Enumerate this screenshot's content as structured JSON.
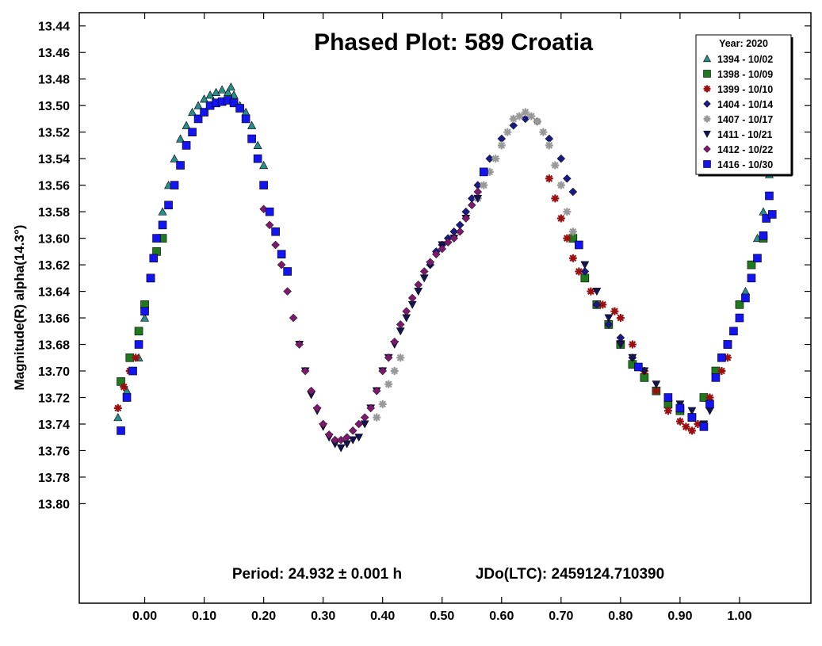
{
  "chart_data": {
    "type": "scatter",
    "title": "Phased Plot: 589 Croatia",
    "ylabel": "Magnitude(R) alpha(14.3°)",
    "xlabel": "",
    "xlim": [
      -0.11,
      1.12
    ],
    "ylim": [
      13.43,
      13.875
    ],
    "y_inverted": true,
    "x_ticks": [
      "0.00",
      "0.10",
      "0.20",
      "0.30",
      "0.40",
      "0.50",
      "0.60",
      "0.70",
      "0.80",
      "0.90",
      "1.00"
    ],
    "x_tick_values": [
      0,
      0.1,
      0.2,
      0.3,
      0.4,
      0.5,
      0.6,
      0.7,
      0.8,
      0.9,
      1.0
    ],
    "y_ticks": [
      "13.44",
      "13.46",
      "13.48",
      "13.50",
      "13.52",
      "13.54",
      "13.56",
      "13.58",
      "13.60",
      "13.62",
      "13.64",
      "13.66",
      "13.68",
      "13.70",
      "13.72",
      "13.74",
      "13.76",
      "13.78",
      "13.80"
    ],
    "y_tick_values": [
      13.44,
      13.46,
      13.48,
      13.5,
      13.52,
      13.54,
      13.56,
      13.58,
      13.6,
      13.62,
      13.64,
      13.66,
      13.68,
      13.7,
      13.72,
      13.74,
      13.76,
      13.78,
      13.8
    ],
    "period_text": "Period: 24.932 ± 0.001 h",
    "epoch_text": "JDo(LTC): 2459124.710390",
    "legend_title": "Year: 2020",
    "legend_position": "top-right",
    "grid": false,
    "series": [
      {
        "name": "1394 - 10/02",
        "marker": "triangle",
        "color": "#2a8c8c",
        "points": [
          [
            -0.045,
            13.735
          ],
          [
            -0.03,
            13.715
          ],
          [
            -0.01,
            13.69
          ],
          [
            0.0,
            13.66
          ],
          [
            0.01,
            13.63
          ],
          [
            0.02,
            13.6
          ],
          [
            0.03,
            13.58
          ],
          [
            0.04,
            13.56
          ],
          [
            0.05,
            13.54
          ],
          [
            0.06,
            13.525
          ],
          [
            0.07,
            13.515
          ],
          [
            0.08,
            13.505
          ],
          [
            0.09,
            13.5
          ],
          [
            0.1,
            13.495
          ],
          [
            0.11,
            13.492
          ],
          [
            0.12,
            13.49
          ],
          [
            0.13,
            13.488
          ],
          [
            0.14,
            13.49
          ],
          [
            0.145,
            13.486
          ],
          [
            0.15,
            13.492
          ],
          [
            0.16,
            13.5
          ],
          [
            0.17,
            13.505
          ],
          [
            0.18,
            13.515
          ],
          [
            0.19,
            13.53
          ],
          [
            0.2,
            13.545
          ],
          [
            1.0,
            13.66
          ],
          [
            1.01,
            13.64
          ],
          [
            1.02,
            13.62
          ],
          [
            1.03,
            13.6
          ],
          [
            1.04,
            13.58
          ],
          [
            1.05,
            13.552
          ]
        ]
      },
      {
        "name": "1398 - 10/09",
        "marker": "square",
        "color": "#1f7a1f",
        "points": [
          [
            -0.04,
            13.708
          ],
          [
            -0.025,
            13.69
          ],
          [
            -0.01,
            13.67
          ],
          [
            0.0,
            13.65
          ],
          [
            0.01,
            13.63
          ],
          [
            0.02,
            13.61
          ],
          [
            0.03,
            13.6
          ],
          [
            0.72,
            13.6
          ],
          [
            0.74,
            13.63
          ],
          [
            0.76,
            13.65
          ],
          [
            0.78,
            13.665
          ],
          [
            0.8,
            13.68
          ],
          [
            0.82,
            13.695
          ],
          [
            0.84,
            13.705
          ],
          [
            0.86,
            13.715
          ],
          [
            0.88,
            13.725
          ],
          [
            0.9,
            13.73
          ],
          [
            0.92,
            13.735
          ],
          [
            0.94,
            13.72
          ],
          [
            0.96,
            13.7
          ],
          [
            0.98,
            13.68
          ],
          [
            1.0,
            13.65
          ],
          [
            1.02,
            13.62
          ],
          [
            1.04,
            13.6
          ]
        ]
      },
      {
        "name": "1399 - 10/10",
        "marker": "asterisk",
        "color": "#9a1010",
        "points": [
          [
            -0.045,
            13.728
          ],
          [
            -0.035,
            13.712
          ],
          [
            -0.025,
            13.7
          ],
          [
            -0.015,
            13.69
          ],
          [
            0.68,
            13.555
          ],
          [
            0.69,
            13.57
          ],
          [
            0.7,
            13.585
          ],
          [
            0.71,
            13.6
          ],
          [
            0.72,
            13.615
          ],
          [
            0.73,
            13.625
          ],
          [
            0.75,
            13.64
          ],
          [
            0.77,
            13.65
          ],
          [
            0.79,
            13.655
          ],
          [
            0.8,
            13.66
          ],
          [
            0.82,
            13.68
          ],
          [
            0.84,
            13.7
          ],
          [
            0.86,
            13.715
          ],
          [
            0.88,
            13.73
          ],
          [
            0.9,
            13.738
          ],
          [
            0.91,
            13.742
          ],
          [
            0.92,
            13.745
          ],
          [
            0.93,
            13.74
          ],
          [
            0.95,
            13.72
          ],
          [
            0.96,
            13.705
          ],
          [
            0.97,
            13.7
          ],
          [
            0.98,
            13.69
          ]
        ]
      },
      {
        "name": "1404 - 10/14",
        "marker": "diamond",
        "color": "#1a1a80",
        "points": [
          [
            0.48,
            13.62
          ],
          [
            0.49,
            13.61
          ],
          [
            0.5,
            13.605
          ],
          [
            0.51,
            13.6
          ],
          [
            0.52,
            13.595
          ],
          [
            0.53,
            13.59
          ],
          [
            0.54,
            13.58
          ],
          [
            0.55,
            13.57
          ],
          [
            0.56,
            13.56
          ],
          [
            0.57,
            13.55
          ],
          [
            0.58,
            13.54
          ],
          [
            0.6,
            13.525
          ],
          [
            0.62,
            13.515
          ],
          [
            0.64,
            13.51
          ],
          [
            0.66,
            13.512
          ],
          [
            0.68,
            13.525
          ],
          [
            0.7,
            13.54
          ],
          [
            0.71,
            13.555
          ],
          [
            0.72,
            13.565
          ],
          [
            0.74,
            13.625
          ],
          [
            0.76,
            13.65
          ],
          [
            0.78,
            13.665
          ],
          [
            0.8,
            13.675
          ],
          [
            0.82,
            13.69
          ]
        ]
      },
      {
        "name": "1407 - 10/17",
        "marker": "asterisk",
        "color": "#999999",
        "points": [
          [
            0.39,
            13.735
          ],
          [
            0.4,
            13.725
          ],
          [
            0.41,
            13.71
          ],
          [
            0.42,
            13.7
          ],
          [
            0.43,
            13.69
          ],
          [
            0.56,
            13.57
          ],
          [
            0.57,
            13.56
          ],
          [
            0.58,
            13.55
          ],
          [
            0.59,
            13.54
          ],
          [
            0.6,
            13.53
          ],
          [
            0.61,
            13.52
          ],
          [
            0.62,
            13.51
          ],
          [
            0.63,
            13.508
          ],
          [
            0.64,
            13.505
          ],
          [
            0.65,
            13.508
          ],
          [
            0.66,
            13.512
          ],
          [
            0.67,
            13.52
          ],
          [
            0.68,
            13.53
          ],
          [
            0.69,
            13.545
          ],
          [
            0.7,
            13.56
          ],
          [
            0.71,
            13.58
          ],
          [
            0.72,
            13.595
          ]
        ]
      },
      {
        "name": "1411 - 10/21",
        "marker": "triangle-down",
        "color": "#141450",
        "points": [
          [
            0.26,
            13.68
          ],
          [
            0.27,
            13.7
          ],
          [
            0.28,
            13.718
          ],
          [
            0.29,
            13.73
          ],
          [
            0.3,
            13.742
          ],
          [
            0.31,
            13.75
          ],
          [
            0.32,
            13.755
          ],
          [
            0.33,
            13.758
          ],
          [
            0.34,
            13.755
          ],
          [
            0.35,
            13.752
          ],
          [
            0.36,
            13.75
          ],
          [
            0.37,
            13.74
          ],
          [
            0.38,
            13.728
          ],
          [
            0.39,
            13.715
          ],
          [
            0.4,
            13.7
          ],
          [
            0.41,
            13.69
          ],
          [
            0.42,
            13.68
          ],
          [
            0.43,
            13.67
          ],
          [
            0.44,
            13.66
          ],
          [
            0.45,
            13.65
          ],
          [
            0.46,
            13.64
          ],
          [
            0.47,
            13.63
          ],
          [
            0.48,
            13.62
          ],
          [
            0.5,
            13.605
          ],
          [
            0.52,
            13.6
          ],
          [
            0.54,
            13.585
          ],
          [
            0.56,
            13.57
          ],
          [
            0.74,
            13.62
          ],
          [
            0.76,
            13.64
          ],
          [
            0.78,
            13.66
          ],
          [
            0.8,
            13.68
          ],
          [
            0.82,
            13.69
          ],
          [
            0.84,
            13.7
          ],
          [
            0.86,
            13.71
          ],
          [
            0.88,
            13.72
          ],
          [
            0.9,
            13.725
          ],
          [
            0.92,
            13.73
          ],
          [
            0.94,
            13.74
          ],
          [
            0.95,
            13.73
          ]
        ]
      },
      {
        "name": "1412 - 10/22",
        "marker": "diamond",
        "color": "#7a1a6a",
        "points": [
          [
            0.2,
            13.578
          ],
          [
            0.21,
            13.59
          ],
          [
            0.22,
            13.605
          ],
          [
            0.23,
            13.62
          ],
          [
            0.24,
            13.64
          ],
          [
            0.25,
            13.66
          ],
          [
            0.26,
            13.68
          ],
          [
            0.27,
            13.7
          ],
          [
            0.28,
            13.715
          ],
          [
            0.29,
            13.728
          ],
          [
            0.3,
            13.74
          ],
          [
            0.31,
            13.748
          ],
          [
            0.32,
            13.752
          ],
          [
            0.33,
            13.752
          ],
          [
            0.34,
            13.75
          ],
          [
            0.35,
            13.745
          ],
          [
            0.36,
            13.74
          ],
          [
            0.37,
            13.735
          ],
          [
            0.38,
            13.728
          ],
          [
            0.39,
            13.715
          ],
          [
            0.4,
            13.7
          ],
          [
            0.41,
            13.69
          ],
          [
            0.42,
            13.678
          ],
          [
            0.43,
            13.665
          ],
          [
            0.44,
            13.655
          ],
          [
            0.45,
            13.645
          ],
          [
            0.46,
            13.635
          ],
          [
            0.47,
            13.625
          ],
          [
            0.48,
            13.618
          ],
          [
            0.49,
            13.612
          ],
          [
            0.5,
            13.608
          ],
          [
            0.51,
            13.603
          ],
          [
            0.52,
            13.6
          ],
          [
            0.53,
            13.595
          ],
          [
            0.54,
            13.585
          ],
          [
            0.55,
            13.575
          ],
          [
            0.56,
            13.565
          ]
        ]
      },
      {
        "name": "1416 - 10/30",
        "marker": "square",
        "color": "#1414f0",
        "points": [
          [
            -0.04,
            13.745
          ],
          [
            -0.03,
            13.72
          ],
          [
            -0.02,
            13.7
          ],
          [
            -0.01,
            13.68
          ],
          [
            0.0,
            13.655
          ],
          [
            0.01,
            13.63
          ],
          [
            0.015,
            13.615
          ],
          [
            0.02,
            13.6
          ],
          [
            0.03,
            13.59
          ],
          [
            0.04,
            13.575
          ],
          [
            0.05,
            13.56
          ],
          [
            0.06,
            13.545
          ],
          [
            0.07,
            13.53
          ],
          [
            0.08,
            13.52
          ],
          [
            0.09,
            13.51
          ],
          [
            0.1,
            13.505
          ],
          [
            0.11,
            13.5
          ],
          [
            0.12,
            13.498
          ],
          [
            0.13,
            13.497
          ],
          [
            0.14,
            13.496
          ],
          [
            0.15,
            13.498
          ],
          [
            0.16,
            13.502
          ],
          [
            0.17,
            13.51
          ],
          [
            0.18,
            13.525
          ],
          [
            0.19,
            13.54
          ],
          [
            0.2,
            13.56
          ],
          [
            0.21,
            13.58
          ],
          [
            0.22,
            13.595
          ],
          [
            0.23,
            13.612
          ],
          [
            0.24,
            13.625
          ],
          [
            0.57,
            13.55
          ],
          [
            0.73,
            13.605
          ],
          [
            0.83,
            13.697
          ],
          [
            0.88,
            13.72
          ],
          [
            0.9,
            13.728
          ],
          [
            0.92,
            13.735
          ],
          [
            0.94,
            13.742
          ],
          [
            0.95,
            13.725
          ],
          [
            0.96,
            13.705
          ],
          [
            0.97,
            13.69
          ],
          [
            0.98,
            13.68
          ],
          [
            0.99,
            13.67
          ],
          [
            1.0,
            13.66
          ],
          [
            1.01,
            13.645
          ],
          [
            1.02,
            13.63
          ],
          [
            1.03,
            13.615
          ],
          [
            1.04,
            13.598
          ],
          [
            1.045,
            13.585
          ],
          [
            1.05,
            13.568
          ],
          [
            1.055,
            13.582
          ]
        ]
      }
    ]
  }
}
